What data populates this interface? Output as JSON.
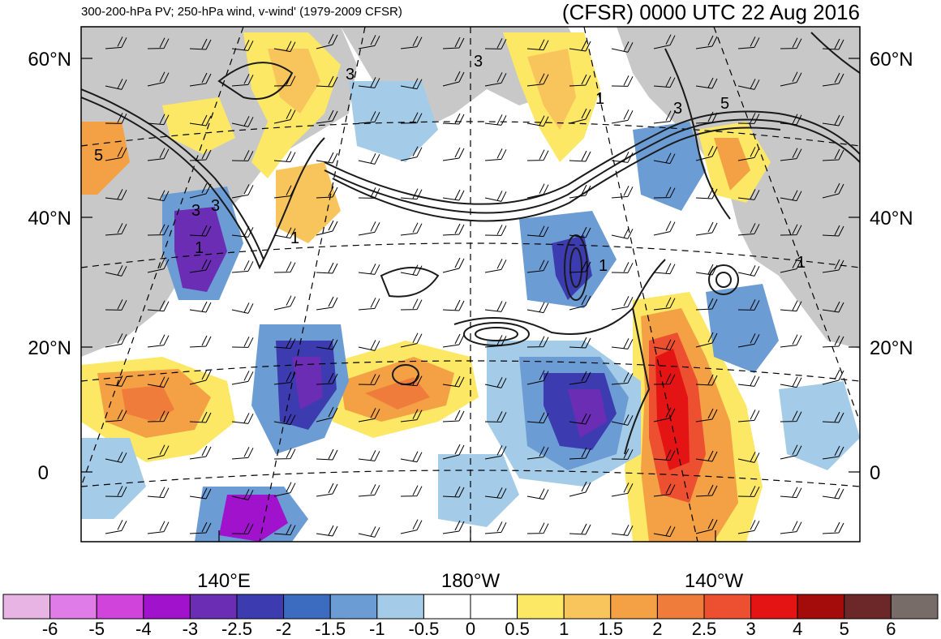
{
  "header": {
    "left_title": "300-200-hPa PV; 250-hPa wind, v-wind' (1979-2009 CFSR)",
    "right_title": "(CFSR) 0000 UTC 22 Aug 2016"
  },
  "map": {
    "lat_labels": [
      "60°N",
      "40°N",
      "20°N",
      "0"
    ],
    "lon_labels": [
      "140°E",
      "180°W",
      "140°W"
    ],
    "contour_labels": [
      "5",
      "3",
      "3",
      "1",
      "3",
      "1",
      "3",
      "5",
      "1",
      "1",
      "1",
      "3"
    ]
  },
  "colorbar": {
    "labels": [
      "-6",
      "-5",
      "-4",
      "-3",
      "-2.5",
      "-2",
      "-1.5",
      "-1",
      "-0.5",
      "0",
      "0.5",
      "1",
      "1.5",
      "2",
      "2.5",
      "3",
      "4",
      "5",
      "6"
    ],
    "colors": [
      "#e8b4e4",
      "#e07ce8",
      "#d044dc",
      "#a012cc",
      "#6a2db4",
      "#3c3cb0",
      "#3c6cc0",
      "#6c9cd4",
      "#a4cce8",
      "#ffffff",
      "#ffffff",
      "#fce864",
      "#f8c45c",
      "#f4a044",
      "#f07c3c",
      "#ec5030",
      "#e41414",
      "#a40c0c",
      "#6c2828",
      "#786c68"
    ]
  },
  "colors": {
    "land": "#c8c8c8",
    "frame": "#000000"
  }
}
